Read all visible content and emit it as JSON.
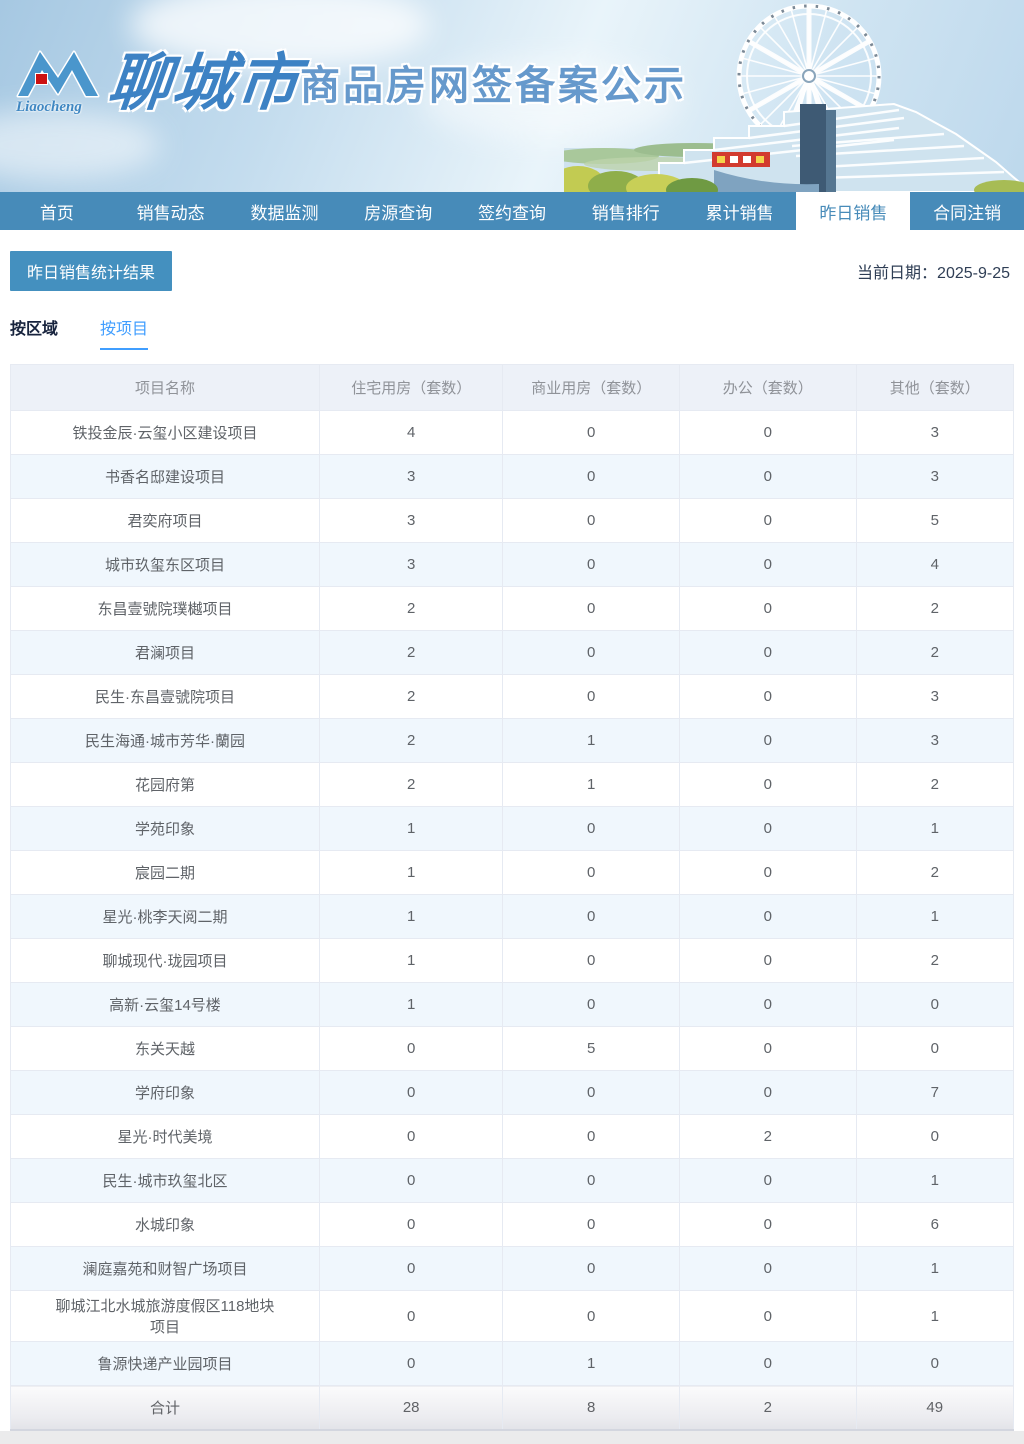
{
  "header": {
    "city": "聊城市",
    "title": "商品房网签备案公示",
    "logo_script": "Liaocheng"
  },
  "nav": {
    "items": [
      "首页",
      "销售动态",
      "数据监测",
      "房源查询",
      "签约查询",
      "销售排行",
      "累计销售",
      "昨日销售",
      "合同注销"
    ],
    "active": "昨日销售"
  },
  "toolbar": {
    "result_button": "昨日销售统计结果",
    "date_label": "当前日期：",
    "date_value": "2025-9-25"
  },
  "tabs": {
    "items": [
      "按区域",
      "按项目"
    ],
    "active": "按项目"
  },
  "table": {
    "headers": [
      "项目名称",
      "住宅用房（套数）",
      "商业用房（套数）",
      "办公（套数）",
      "其他（套数）"
    ],
    "rows": [
      [
        "铁投金辰·云玺小区建设项目",
        "4",
        "0",
        "0",
        "3"
      ],
      [
        "书香名邸建设项目",
        "3",
        "0",
        "0",
        "3"
      ],
      [
        "君奕府项目",
        "3",
        "0",
        "0",
        "5"
      ],
      [
        "城市玖玺东区项目",
        "3",
        "0",
        "0",
        "4"
      ],
      [
        "东昌壹號院璞樾项目",
        "2",
        "0",
        "0",
        "2"
      ],
      [
        "君澜项目",
        "2",
        "0",
        "0",
        "2"
      ],
      [
        "民生·东昌壹號院项目",
        "2",
        "0",
        "0",
        "3"
      ],
      [
        "民生海通·城市芳华·蘭园",
        "2",
        "1",
        "0",
        "3"
      ],
      [
        "花园府第",
        "2",
        "1",
        "0",
        "2"
      ],
      [
        "学苑印象",
        "1",
        "0",
        "0",
        "1"
      ],
      [
        "宸园二期",
        "1",
        "0",
        "0",
        "2"
      ],
      [
        "星光·桃李天阅二期",
        "1",
        "0",
        "0",
        "1"
      ],
      [
        "聊城现代·珑园项目",
        "1",
        "0",
        "0",
        "2"
      ],
      [
        "高新·云玺14号楼",
        "1",
        "0",
        "0",
        "0"
      ],
      [
        "东关天越",
        "0",
        "5",
        "0",
        "0"
      ],
      [
        "学府印象",
        "0",
        "0",
        "0",
        "7"
      ],
      [
        "星光·时代美境",
        "0",
        "0",
        "2",
        "0"
      ],
      [
        "民生·城市玖玺北区",
        "0",
        "0",
        "0",
        "1"
      ],
      [
        "水城印象",
        "0",
        "0",
        "0",
        "6"
      ],
      [
        "澜庭嘉苑和财智广场项目",
        "0",
        "0",
        "0",
        "1"
      ],
      [
        "聊城江北水城旅游度假区118地块项目",
        "0",
        "0",
        "0",
        "1"
      ],
      [
        "鲁源快递产业园项目",
        "0",
        "1",
        "0",
        "0"
      ]
    ],
    "total_row": [
      "合计",
      "28",
      "8",
      "2",
      "49"
    ]
  },
  "colors": {
    "nav_blue": "#478bb9",
    "button_blue": "#4490bf",
    "active_tab_blue": "#409eff",
    "header_bg": "#edf1f8",
    "stripe_bg": "#f0f7fd",
    "title_blue": "#6699cc",
    "logo_red": "#cc1111"
  }
}
